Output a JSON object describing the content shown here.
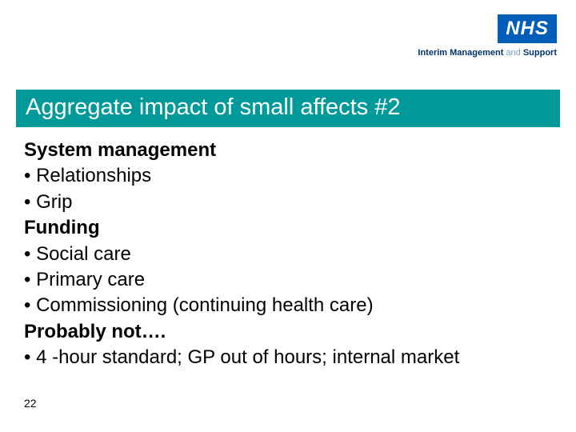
{
  "logo": {
    "text": "NHS",
    "bg_color": "#005eb8",
    "fg_color": "#ffffff",
    "subtext_bold": "Interim Management",
    "subtext_light": " and ",
    "subtext_bold2": "Support"
  },
  "title": {
    "text": "Aggregate impact of small affects #2",
    "bg_color": "#009999",
    "fg_color": "#ffffff",
    "fontsize": 29
  },
  "body": {
    "fontsize": 24,
    "heading1": "System management",
    "bullets1": [
      "• Relationships",
      "• Grip"
    ],
    "heading2": "Funding",
    "bullets2": [
      "• Social care",
      "• Primary care",
      "• Commissioning (continuing health care)"
    ],
    "heading3": "Probably not….",
    "bullets3": [
      "• 4 -hour standard; GP out of hours; internal market"
    ]
  },
  "page_number": "22"
}
